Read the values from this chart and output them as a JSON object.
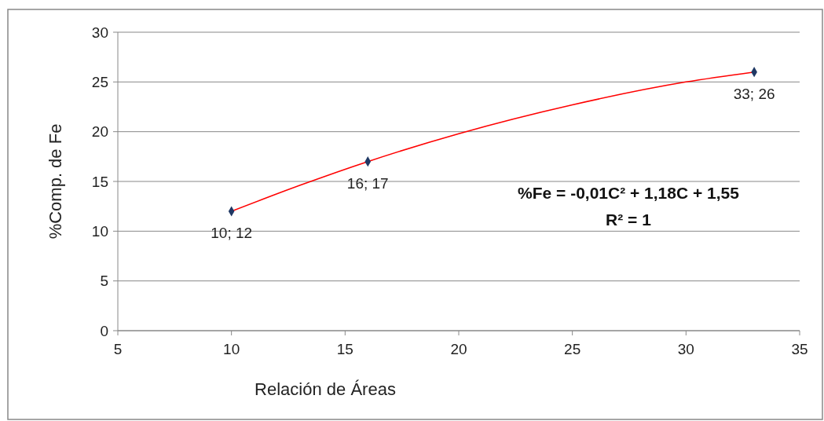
{
  "chart_data": {
    "type": "scatter",
    "xlabel": "Relación de Áreas",
    "ylabel": "%Comp. de Fe",
    "xlim": [
      5,
      35
    ],
    "xticks": [
      5,
      10,
      15,
      20,
      25,
      30,
      35
    ],
    "ylim": [
      0,
      30
    ],
    "yticks": [
      0,
      5,
      10,
      15,
      20,
      25,
      30
    ],
    "grid": "y",
    "marker": "diamond",
    "series": [
      {
        "type": "line",
        "marker": "none",
        "color": "#ff0000",
        "x": [
          10,
          13,
          16,
          20,
          25,
          30,
          33
        ],
        "values": [
          12,
          14.6,
          17,
          19.8,
          22.7,
          25.0,
          26
        ]
      },
      {
        "color": "#1f3864",
        "x": [
          10,
          16,
          33
        ],
        "values": [
          12,
          17,
          26
        ],
        "value_labels": [
          "10; 12",
          "16; 17",
          "33; 26"
        ]
      }
    ],
    "annotations": [
      "%Fe = -0,01C² + 1,18C + 1,55",
      "R² = 1"
    ]
  }
}
